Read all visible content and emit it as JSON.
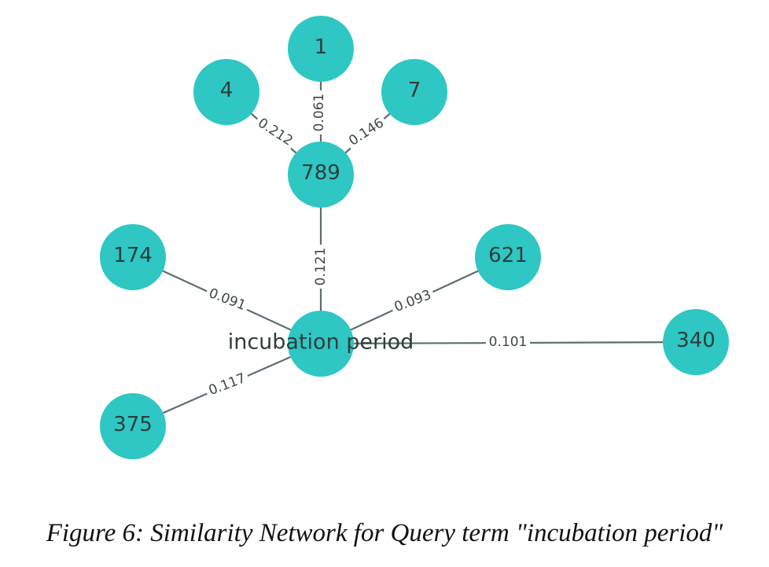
{
  "caption": "Figure 6: Similarity Network for Query term \"incubation period\"",
  "colors": {
    "node": "#2ec7c3",
    "edge": "#5c6f6a",
    "label": "#2f3d3b"
  },
  "graph": {
    "nodes": [
      {
        "id": "incubation period",
        "role": "query"
      },
      {
        "id": "789"
      },
      {
        "id": "1"
      },
      {
        "id": "4"
      },
      {
        "id": "7"
      },
      {
        "id": "174"
      },
      {
        "id": "621"
      },
      {
        "id": "340"
      },
      {
        "id": "375"
      }
    ],
    "edges": [
      {
        "source": "789",
        "target": "1",
        "weight": "0.061"
      },
      {
        "source": "789",
        "target": "4",
        "weight": "0.212"
      },
      {
        "source": "789",
        "target": "7",
        "weight": "0.146"
      },
      {
        "source": "incubation period",
        "target": "789",
        "weight": "0.121"
      },
      {
        "source": "incubation period",
        "target": "174",
        "weight": "0.091"
      },
      {
        "source": "incubation period",
        "target": "621",
        "weight": "0.093"
      },
      {
        "source": "incubation period",
        "target": "340",
        "weight": "0.101"
      },
      {
        "source": "incubation period",
        "target": "375",
        "weight": "0.117"
      }
    ]
  }
}
